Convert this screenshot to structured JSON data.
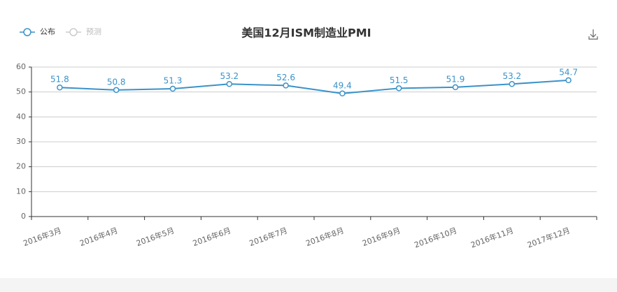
{
  "chart_data": {
    "type": "line",
    "title": "美国12月ISM制造业PMI",
    "categories": [
      "2016年3月",
      "2016年4月",
      "2016年5月",
      "2016年6月",
      "2016年7月",
      "2016年8月",
      "2016年9月",
      "2016年10月",
      "2016年11月",
      "2017年12月"
    ],
    "series": [
      {
        "name": "公布",
        "color": "#3a92c9",
        "values": [
          51.8,
          50.8,
          51.3,
          53.2,
          52.6,
          49.4,
          51.5,
          51.9,
          53.2,
          54.7
        ]
      },
      {
        "name": "预测",
        "color": "#cccccc",
        "values": [
          null,
          null,
          null,
          null,
          null,
          null,
          null,
          null,
          null,
          null
        ]
      }
    ],
    "ylim": [
      0,
      60
    ],
    "yticks": [
      0,
      10,
      20,
      30,
      40,
      50,
      60
    ],
    "grid": true,
    "legend": "top-left"
  }
}
